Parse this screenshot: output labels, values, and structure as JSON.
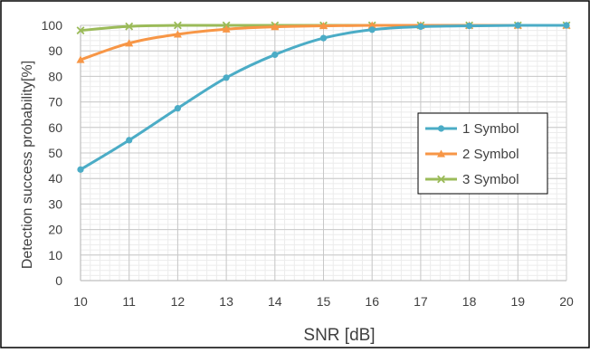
{
  "chart_data": {
    "type": "line",
    "title": "",
    "xlabel": "SNR [dB]",
    "ylabel": "Detection success probability[%]",
    "x": [
      10,
      11,
      12,
      13,
      14,
      15,
      16,
      17,
      18,
      19,
      20
    ],
    "xlim": [
      10,
      20
    ],
    "ylim": [
      0,
      100
    ],
    "y_ticks": [
      0,
      10,
      20,
      30,
      40,
      50,
      60,
      70,
      80,
      90,
      100
    ],
    "x_ticks": [
      10,
      11,
      12,
      13,
      14,
      15,
      16,
      17,
      18,
      19,
      20
    ],
    "grid": true,
    "minor_grid": true,
    "legend_position": "right",
    "series": [
      {
        "name": "1 Symbol",
        "color": "#4BACC6",
        "marker": "circle",
        "values": [
          43.5,
          55,
          67.5,
          79.5,
          88.5,
          95,
          98.3,
          99.5,
          99.8,
          100,
          100
        ]
      },
      {
        "name": "2 Symbol",
        "color": "#F79646",
        "marker": "triangle",
        "values": [
          86.5,
          93,
          96.5,
          98.5,
          99.4,
          99.8,
          100,
          100,
          100,
          100,
          100
        ]
      },
      {
        "name": "3 Symbol",
        "color": "#9BBB59",
        "marker": "x",
        "values": [
          98,
          99.6,
          100,
          100,
          100,
          100,
          100,
          100,
          100,
          100,
          100
        ]
      }
    ]
  }
}
